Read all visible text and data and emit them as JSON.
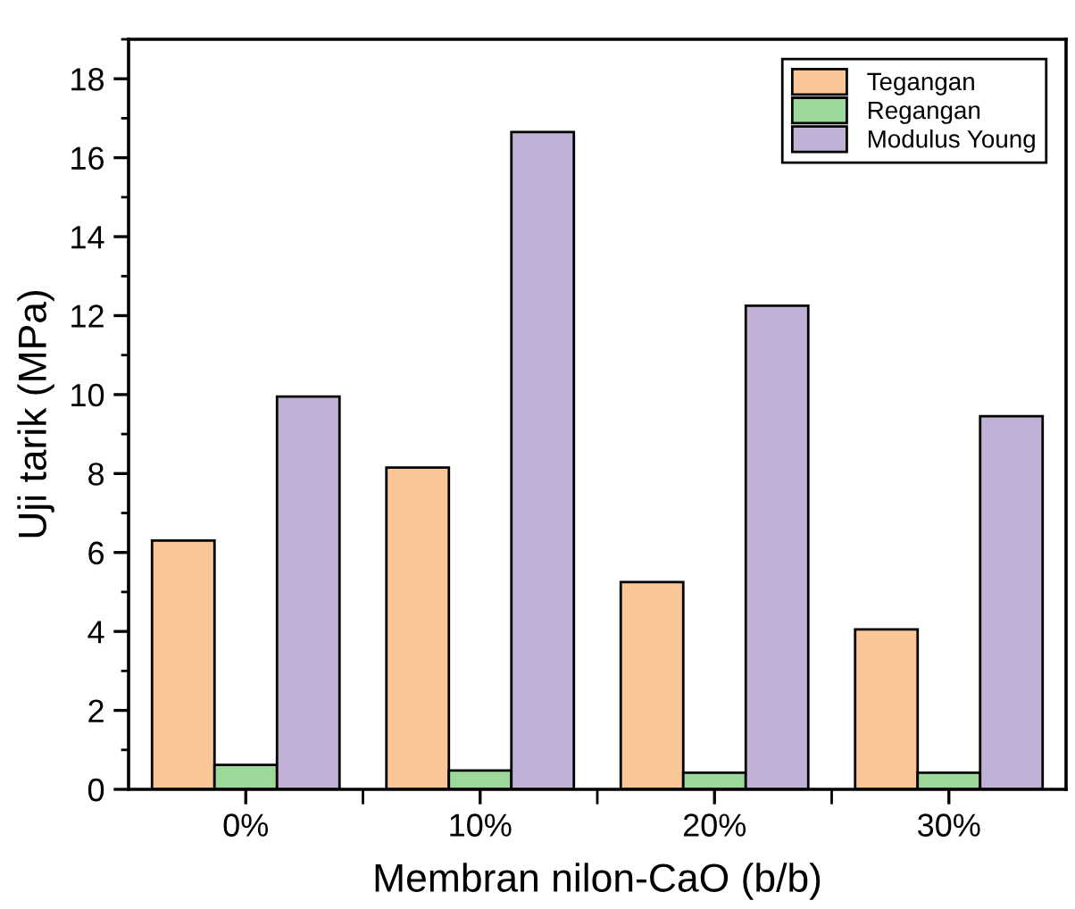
{
  "chart_data": {
    "type": "bar",
    "xlabel": "Membran nilon-CaO (b/b)",
    "ylabel": "Uji tarik (MPa)",
    "categories": [
      "0%",
      "10%",
      "20%",
      "30%"
    ],
    "series": [
      {
        "name": "Tegangan",
        "color": "#f9c797",
        "values": [
          6.3,
          8.15,
          5.25,
          4.05
        ]
      },
      {
        "name": "Regangan",
        "color": "#9dd89b",
        "values": [
          0.62,
          0.48,
          0.42,
          0.42
        ]
      },
      {
        "name": "Modulus Young",
        "color": "#c2b1d7",
        "values": [
          9.95,
          16.65,
          12.25,
          9.45
        ]
      }
    ],
    "ylim": [
      0,
      19
    ],
    "yticks": [
      0,
      2,
      4,
      6,
      8,
      10,
      12,
      14,
      16,
      18
    ],
    "grid": false,
    "legend": "top right"
  }
}
